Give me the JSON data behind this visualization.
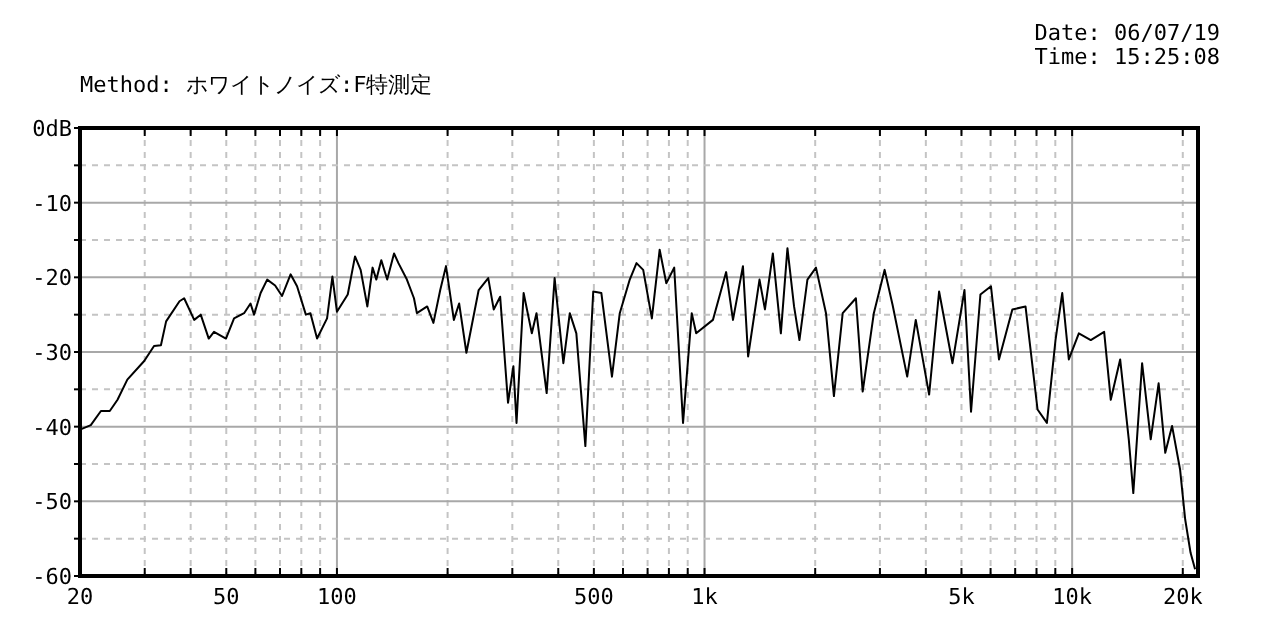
{
  "chart_data": {
    "type": "line",
    "subtitle": "Method: ホワイトノイズ:F特測定",
    "annotations": [
      "Date: 06/07/19",
      "Time: 15:25:08"
    ],
    "log": "x",
    "grid": true,
    "xlim": [
      20,
      22000
    ],
    "ylim": [
      -60,
      0
    ],
    "xticks": [
      20,
      {
        "value": 30,
        "label": null
      },
      {
        "value": 40,
        "label": null
      },
      50,
      {
        "value": 60,
        "label": null
      },
      {
        "value": 70,
        "label": null
      },
      {
        "value": 80,
        "label": null
      },
      {
        "value": 90,
        "label": null
      },
      100,
      {
        "value": 200,
        "label": null
      },
      {
        "value": 300,
        "label": null
      },
      {
        "value": 400,
        "label": null
      },
      500,
      {
        "value": 600,
        "label": null
      },
      {
        "value": 700,
        "label": null
      },
      {
        "value": 800,
        "label": null
      },
      {
        "value": 900,
        "label": null
      },
      {
        "value": 1000,
        "label": "1k"
      },
      {
        "value": 2000,
        "label": null
      },
      {
        "value": 3000,
        "label": null
      },
      {
        "value": 4000,
        "label": null
      },
      {
        "value": 5000,
        "label": "5k"
      },
      {
        "value": 6000,
        "label": null
      },
      {
        "value": 7000,
        "label": null
      },
      {
        "value": 8000,
        "label": null
      },
      {
        "value": 9000,
        "label": null
      },
      {
        "value": 10000,
        "label": "10k"
      },
      {
        "value": 20000,
        "label": "20k"
      }
    ],
    "yticks": [
      {
        "value": 0,
        "label": "0dB"
      },
      {
        "value": -5,
        "label": null
      },
      -10,
      {
        "value": -15,
        "label": null
      },
      -20,
      {
        "value": -25,
        "label": null
      },
      -30,
      {
        "value": -35,
        "label": null
      },
      -40,
      {
        "value": -45,
        "label": null
      },
      -50,
      {
        "value": -55,
        "label": null
      },
      -60
    ],
    "series": [
      {
        "color": "#000000",
        "x": [
          20,
          21.4,
          22.8,
          24.1,
          25.3,
          26.9,
          29.9,
          31.8,
          33.2,
          34.3,
          37.3,
          38.4,
          40.9,
          42.6,
          44.8,
          46.3,
          49.9,
          52.5,
          55.9,
          58.2,
          59.5,
          62,
          64.6,
          67.9,
          70.9,
          74.8,
          77.9,
          82.3,
          84.7,
          88.3,
          94,
          97.2,
          100,
          107,
          112,
          116,
          121,
          125,
          128,
          132,
          137,
          143,
          147,
          155,
          162,
          165,
          176,
          183,
          191,
          198,
          208,
          215,
          225,
          243,
          258,
          267,
          278,
          292,
          302,
          308,
          322,
          339,
          349,
          372,
          391,
          413,
          430,
          448,
          474,
          498,
          524,
          560,
          588,
          626,
          653,
          681,
          719,
          755,
          787,
          827,
          874,
          923,
          949,
          1054,
          1145,
          1195,
          1272,
          1314,
          1411,
          1460,
          1534,
          1613,
          1681,
          1752,
          1812,
          1905,
          2010,
          2140,
          2249,
          2376,
          2581,
          2693,
          2888,
          3090,
          3248,
          3559,
          3755,
          4083,
          4346,
          4726,
          5095,
          5309,
          5630,
          6015,
          6324,
          6877,
          7468,
          8052,
          8538,
          9011,
          9400,
          9795,
          10430,
          11240,
          12220,
          12740,
          13510,
          14260,
          14670,
          15500,
          16360,
          17190,
          17920,
          18700,
          19660,
          20300,
          21000,
          21600
        ],
        "values": [
          -40.4,
          -39.8,
          -37.9,
          -37.9,
          -36.4,
          -33.7,
          -31.2,
          -29.2,
          -29.1,
          -25.9,
          -23.2,
          -22.8,
          -25.7,
          -25,
          -28.2,
          -27.3,
          -28.2,
          -25.5,
          -24.8,
          -23.5,
          -25,
          -22.1,
          -20.3,
          -21.1,
          -22.5,
          -19.6,
          -21.2,
          -25,
          -24.8,
          -28.2,
          -25.5,
          -19.9,
          -24.6,
          -22.3,
          -17.2,
          -19,
          -23.9,
          -18.7,
          -20.3,
          -17.7,
          -20.3,
          -16.8,
          -18.1,
          -20.3,
          -22.8,
          -24.8,
          -23.9,
          -26.1,
          -21.7,
          -18.5,
          -25.7,
          -23.5,
          -30.1,
          -21.7,
          -20.1,
          -24.3,
          -22.6,
          -36.8,
          -31.9,
          -39.5,
          -22.1,
          -27.5,
          -24.8,
          -35.5,
          -20.1,
          -31.5,
          -24.8,
          -27.5,
          -42.6,
          -21.9,
          -22.1,
          -33.3,
          -24.8,
          -20.3,
          -18.1,
          -19,
          -25.5,
          -16.3,
          -20.8,
          -18.7,
          -39.5,
          -24.8,
          -27.5,
          -25.7,
          -19.3,
          -25.7,
          -18.5,
          -30.6,
          -20.3,
          -24.3,
          -16.8,
          -27.5,
          -16.1,
          -23.9,
          -28.4,
          -20.3,
          -18.7,
          -24.8,
          -35.9,
          -24.8,
          -22.8,
          -35.3,
          -24.8,
          -19,
          -23.7,
          -33.3,
          -25.7,
          -35.7,
          -21.9,
          -31.5,
          -21.7,
          -38,
          -22.3,
          -21.2,
          -31,
          -24.3,
          -23.9,
          -37.7,
          -39.5,
          -28.4,
          -22.1,
          -31,
          -27.5,
          -28.4,
          -27.3,
          -36.4,
          -31,
          -41.7,
          -48.9,
          -31.5,
          -41.7,
          -34.2,
          -43.5,
          -39.9,
          -45.7,
          -52.4,
          -56.9,
          -59.1
        ]
      }
    ]
  }
}
